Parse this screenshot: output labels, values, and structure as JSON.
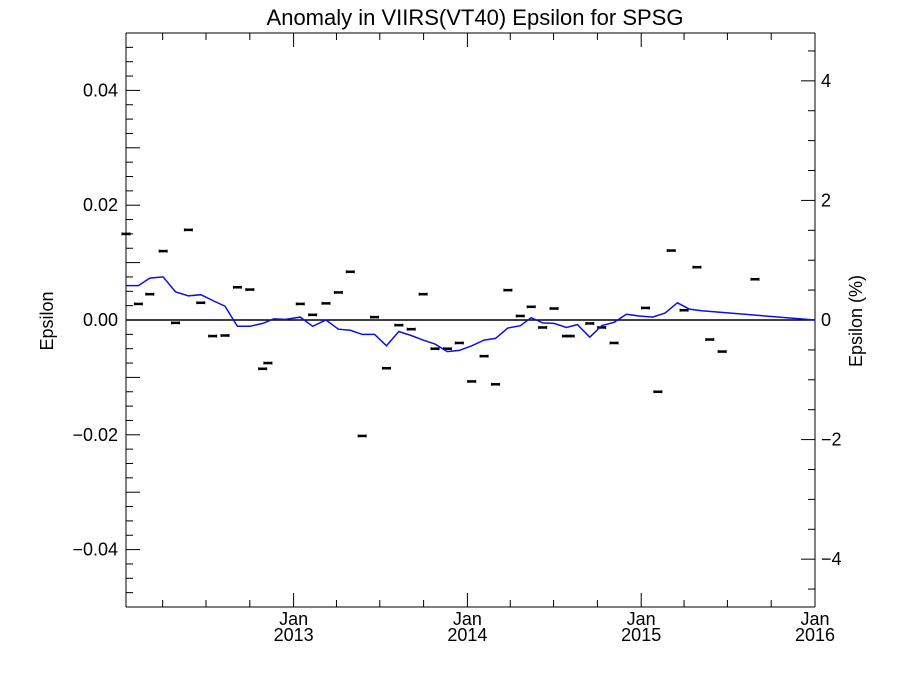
{
  "chart_data": {
    "type": "scatter",
    "title": "Anomaly in VIIRS(VT40) Epsilon for SPSG",
    "ylabel": "Epsilon",
    "ylabel_right": "Epsilon (%)",
    "xlim": [
      "2012-01-15",
      "2016-01-01"
    ],
    "ylim": [
      -0.05,
      0.05
    ],
    "ylim_right": [
      -4.8,
      4.8
    ],
    "grid": false,
    "zero_line": true,
    "x_ticks": [
      {
        "date": "2013-01-01",
        "month": "Jan",
        "year": "2013"
      },
      {
        "date": "2014-01-01",
        "month": "Jan",
        "year": "2014"
      },
      {
        "date": "2015-01-01",
        "month": "Jan",
        "year": "2015"
      },
      {
        "date": "2016-01-01",
        "month": "Jan",
        "year": "2016"
      }
    ],
    "y_ticks_left": [
      "0.04",
      "0.02",
      "0.00",
      "−0.02",
      "−0.04"
    ],
    "y_tick_values_left": [
      0.04,
      0.02,
      0.0,
      -0.02,
      -0.04
    ],
    "y_ticks_right": [
      "4",
      "2",
      "0",
      "−2",
      "−4"
    ],
    "y_tick_values_right": [
      4,
      2,
      0,
      -2,
      -4
    ],
    "series": [
      {
        "style": "markers",
        "color": "#000000",
        "points": [
          {
            "x": "2012-01-15",
            "y": 0.015
          },
          {
            "x": "2012-02-10",
            "y": 0.0028
          },
          {
            "x": "2012-03-05",
            "y": 0.0045
          },
          {
            "x": "2012-04-02",
            "y": 0.012
          },
          {
            "x": "2012-04-28",
            "y": -0.0005
          },
          {
            "x": "2012-05-25",
            "y": 0.0157
          },
          {
            "x": "2012-06-20",
            "y": 0.003
          },
          {
            "x": "2012-07-15",
            "y": -0.0028
          },
          {
            "x": "2012-08-10",
            "y": -0.0027
          },
          {
            "x": "2012-09-05",
            "y": 0.0057
          },
          {
            "x": "2012-10-01",
            "y": 0.0053
          },
          {
            "x": "2012-10-28",
            "y": -0.0085
          },
          {
            "x": "2012-11-08",
            "y": -0.0075
          },
          {
            "x": "2013-01-15",
            "y": 0.0028
          },
          {
            "x": "2013-02-10",
            "y": 0.0009
          },
          {
            "x": "2013-03-10",
            "y": 0.0029
          },
          {
            "x": "2013-04-05",
            "y": 0.0048
          },
          {
            "x": "2013-04-30",
            "y": 0.0084
          },
          {
            "x": "2013-05-25",
            "y": -0.0202
          },
          {
            "x": "2013-06-20",
            "y": 0.0005
          },
          {
            "x": "2013-07-15",
            "y": -0.0084
          },
          {
            "x": "2013-08-10",
            "y": -0.0009
          },
          {
            "x": "2013-09-05",
            "y": -0.0016
          },
          {
            "x": "2013-09-30",
            "y": 0.0045
          },
          {
            "x": "2013-10-25",
            "y": -0.005
          },
          {
            "x": "2013-11-20",
            "y": -0.005
          },
          {
            "x": "2013-12-15",
            "y": -0.004
          },
          {
            "x": "2014-01-10",
            "y": -0.0107
          },
          {
            "x": "2014-02-05",
            "y": -0.0063
          },
          {
            "x": "2014-03-01",
            "y": -0.0112
          },
          {
            "x": "2014-03-27",
            "y": 0.0052
          },
          {
            "x": "2014-04-22",
            "y": 0.0007
          },
          {
            "x": "2014-05-15",
            "y": 0.0023
          },
          {
            "x": "2014-06-08",
            "y": -0.0013
          },
          {
            "x": "2014-07-02",
            "y": 0.002
          },
          {
            "x": "2014-07-28",
            "y": -0.0028
          },
          {
            "x": "2014-08-05",
            "y": -0.0028
          },
          {
            "x": "2014-09-15",
            "y": -0.0006
          },
          {
            "x": "2014-10-10",
            "y": -0.0013
          },
          {
            "x": "2014-11-05",
            "y": -0.004
          },
          {
            "x": "2015-01-10",
            "y": 0.0021
          },
          {
            "x": "2015-02-05",
            "y": -0.0125
          },
          {
            "x": "2015-03-05",
            "y": 0.0121
          },
          {
            "x": "2015-04-01",
            "y": 0.0017
          },
          {
            "x": "2015-04-28",
            "y": 0.0092
          },
          {
            "x": "2015-05-25",
            "y": -0.0034
          },
          {
            "x": "2015-06-20",
            "y": -0.0055
          },
          {
            "x": "2015-08-28",
            "y": 0.0071
          }
        ]
      },
      {
        "style": "line",
        "color": "#1010e0",
        "points": [
          {
            "x": "2012-01-15",
            "y": 0.006
          },
          {
            "x": "2012-02-10",
            "y": 0.006
          },
          {
            "x": "2012-03-05",
            "y": 0.0073
          },
          {
            "x": "2012-04-02",
            "y": 0.0075
          },
          {
            "x": "2012-04-28",
            "y": 0.0049
          },
          {
            "x": "2012-05-25",
            "y": 0.0042
          },
          {
            "x": "2012-06-20",
            "y": 0.0044
          },
          {
            "x": "2012-07-15",
            "y": 0.0034
          },
          {
            "x": "2012-08-10",
            "y": 0.0024
          },
          {
            "x": "2012-09-05",
            "y": -0.0011
          },
          {
            "x": "2012-10-01",
            "y": -0.0011
          },
          {
            "x": "2012-10-28",
            "y": -0.0006
          },
          {
            "x": "2012-11-20",
            "y": 0.0002
          },
          {
            "x": "2012-12-15",
            "y": 0.0001
          },
          {
            "x": "2013-01-15",
            "y": 0.0005
          },
          {
            "x": "2013-02-10",
            "y": -0.0011
          },
          {
            "x": "2013-03-10",
            "y": 0.0
          },
          {
            "x": "2013-04-05",
            "y": -0.0016
          },
          {
            "x": "2013-04-30",
            "y": -0.0018
          },
          {
            "x": "2013-05-25",
            "y": -0.0025
          },
          {
            "x": "2013-06-20",
            "y": -0.0025
          },
          {
            "x": "2013-07-15",
            "y": -0.0045
          },
          {
            "x": "2013-08-10",
            "y": -0.002
          },
          {
            "x": "2013-09-05",
            "y": -0.0027
          },
          {
            "x": "2013-09-30",
            "y": -0.0035
          },
          {
            "x": "2013-10-25",
            "y": -0.0042
          },
          {
            "x": "2013-11-20",
            "y": -0.0055
          },
          {
            "x": "2013-12-15",
            "y": -0.0053
          },
          {
            "x": "2014-01-10",
            "y": -0.0045
          },
          {
            "x": "2014-02-05",
            "y": -0.0035
          },
          {
            "x": "2014-03-01",
            "y": -0.0032
          },
          {
            "x": "2014-03-27",
            "y": -0.0014
          },
          {
            "x": "2014-04-22",
            "y": -0.001
          },
          {
            "x": "2014-05-15",
            "y": 0.0004
          },
          {
            "x": "2014-06-08",
            "y": -0.0005
          },
          {
            "x": "2014-07-02",
            "y": -0.0006
          },
          {
            "x": "2014-07-28",
            "y": -0.0013
          },
          {
            "x": "2014-08-20",
            "y": -0.0008
          },
          {
            "x": "2014-09-15",
            "y": -0.003
          },
          {
            "x": "2014-10-10",
            "y": -0.001
          },
          {
            "x": "2014-11-05",
            "y": -0.0004
          },
          {
            "x": "2014-12-01",
            "y": 0.001
          },
          {
            "x": "2014-12-28",
            "y": 0.0007
          },
          {
            "x": "2015-01-25",
            "y": 0.0005
          },
          {
            "x": "2015-02-20",
            "y": 0.0012
          },
          {
            "x": "2015-03-18",
            "y": 0.003
          },
          {
            "x": "2015-04-12",
            "y": 0.0019
          },
          {
            "x": "2015-05-08",
            "y": 0.0016
          },
          {
            "x": "2016-01-01",
            "y": 0.0
          }
        ]
      }
    ]
  }
}
